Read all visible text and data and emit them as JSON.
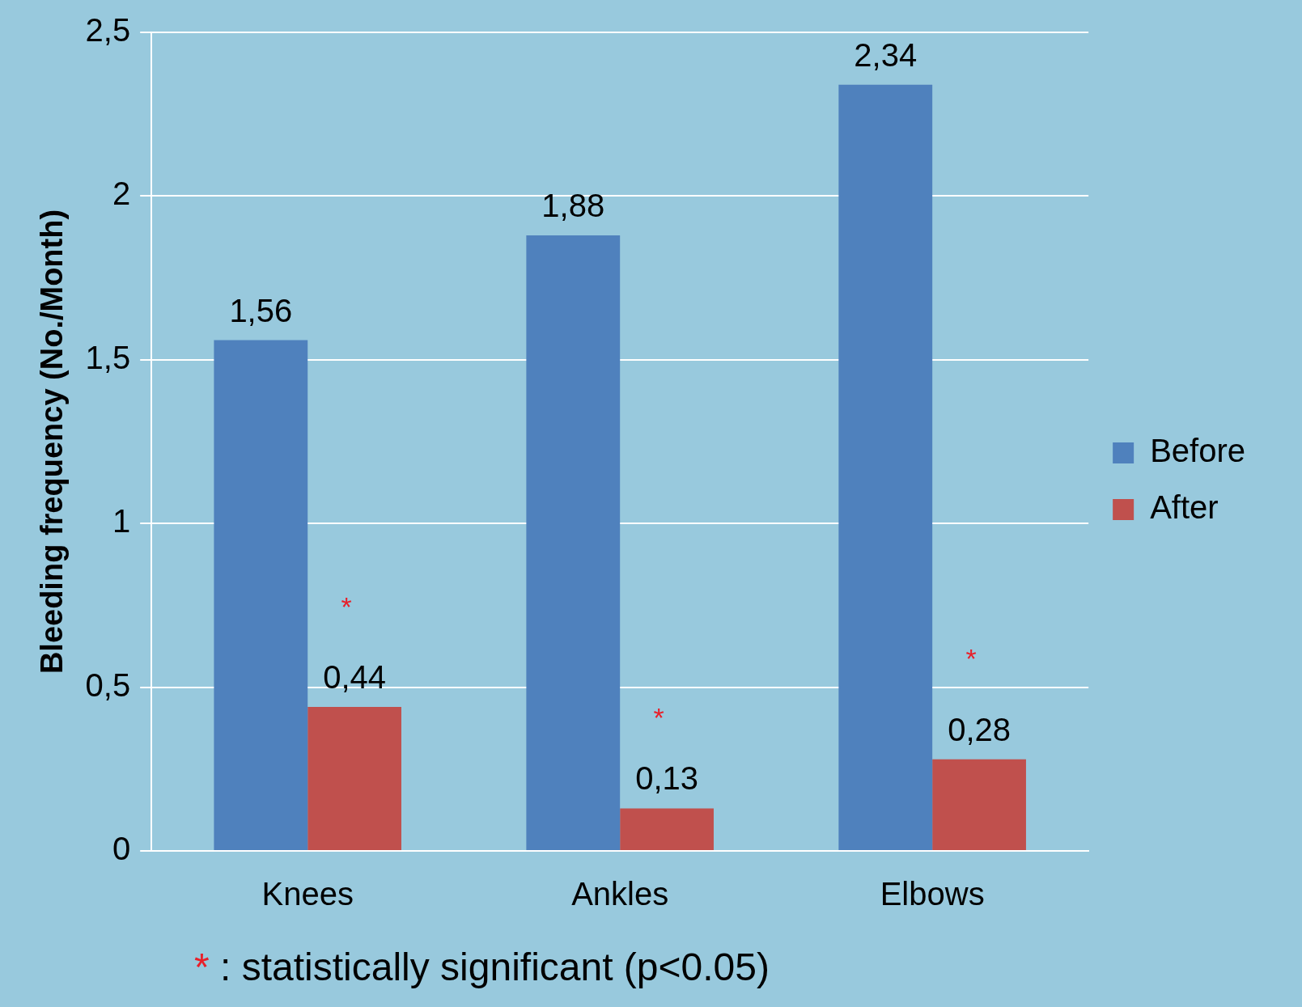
{
  "chart_data": {
    "type": "bar",
    "ylabel": "Bleeding frequency (No./Month)",
    "categories": [
      "Knees",
      "Ankles",
      "Elbows"
    ],
    "series": [
      {
        "name": "Before",
        "color": "#4f81bd",
        "values": [
          1.56,
          1.88,
          2.34
        ],
        "value_labels": [
          "1,56",
          "1,88",
          "2,34"
        ]
      },
      {
        "name": "After",
        "color": "#c0504d",
        "values": [
          0.44,
          0.13,
          0.28
        ],
        "value_labels": [
          "0,44",
          "0,13",
          "0,28"
        ]
      }
    ],
    "ylim": [
      0,
      2.5
    ],
    "yticks": [
      {
        "value": 0,
        "label": "0"
      },
      {
        "value": 0.5,
        "label": "0,5"
      },
      {
        "value": 1,
        "label": "1"
      },
      {
        "value": 1.5,
        "label": "1,5"
      },
      {
        "value": 2,
        "label": "2"
      },
      {
        "value": 2.5,
        "label": "2,5"
      }
    ],
    "grid": "y",
    "legend": "right",
    "annotations": [
      {
        "text": "*",
        "x": "Knees",
        "y": 0.76
      },
      {
        "text": "*",
        "x": "Ankles",
        "y": 0.42
      },
      {
        "text": "*",
        "x": "Elbows",
        "y": 0.6
      },
      "* : statistically significant  (p<0.05)"
    ]
  }
}
